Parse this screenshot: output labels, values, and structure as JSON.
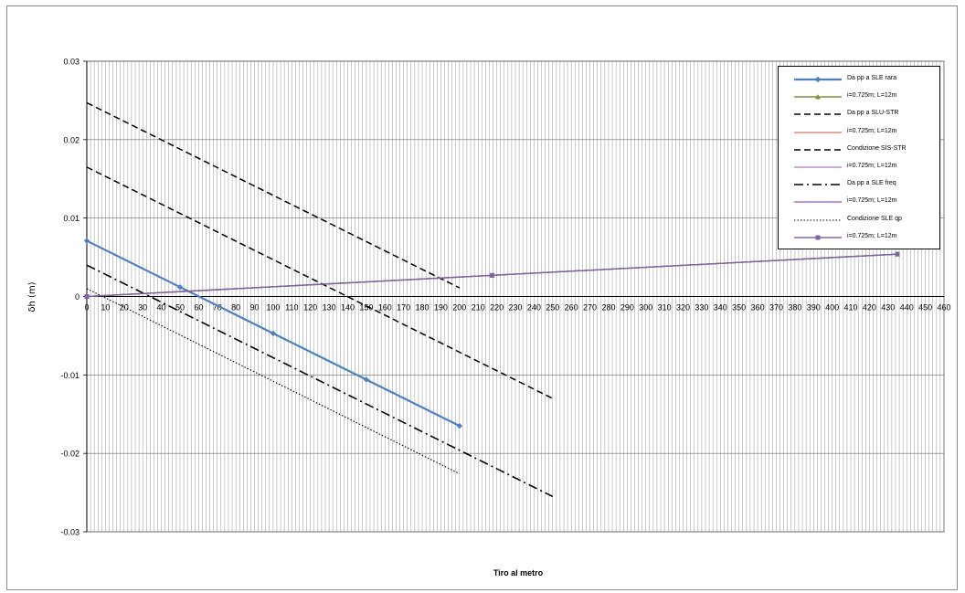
{
  "chart_data": {
    "type": "line",
    "title": "",
    "xlabel": "Tiro al metro",
    "ylabel": "δh (m)",
    "xlim": [
      0,
      460
    ],
    "ylim": [
      -0.03,
      0.03
    ],
    "x_ticks": [
      0,
      10,
      20,
      30,
      40,
      50,
      60,
      70,
      80,
      90,
      100,
      110,
      120,
      130,
      140,
      150,
      160,
      170,
      180,
      190,
      200,
      210,
      220,
      230,
      240,
      250,
      260,
      270,
      280,
      290,
      300,
      310,
      320,
      330,
      340,
      350,
      360,
      370,
      380,
      390,
      400,
      410,
      420,
      430,
      440,
      450,
      460
    ],
    "y_ticks": [
      0.03,
      0.02,
      0.01,
      0,
      -0.01,
      -0.02,
      -0.03
    ],
    "y_tick_labels": [
      "0.03",
      "0.02",
      "0.01",
      "0",
      "-0.01",
      "-0.02",
      "-0.03"
    ],
    "grid": {
      "vertical_minor_step": 2,
      "horizontal_step": 0.01
    },
    "legend_position": "top-right",
    "series": [
      {
        "name": "Da pp a SLE rara",
        "color": "#4f81bd",
        "style": "solid",
        "marker": "diamond",
        "width": 2.2,
        "x": [
          0,
          50,
          100,
          150,
          200
        ],
        "y": [
          0.0071,
          0.0012,
          -0.0047,
          -0.0106,
          -0.0165
        ]
      },
      {
        "name": "i=0.725m; L=12m",
        "color": "#77933c",
        "style": "solid",
        "marker": "triangle",
        "width": 1.4,
        "x": [
          0,
          217.5,
          435
        ],
        "y": [
          0.0,
          0.0027,
          0.0054
        ]
      },
      {
        "name": "Da pp a SLU-STR",
        "color": "#000000",
        "style": "dash",
        "marker": "none",
        "width": 1.5,
        "x": [
          0,
          250
        ],
        "y": [
          0.0165,
          -0.013
        ]
      },
      {
        "name": "i=0.725m; L=12m",
        "color": "#c0504d",
        "style": "solid",
        "marker": "none",
        "width": 1.1,
        "x": [
          0,
          435
        ],
        "y": [
          0.0,
          0.0054
        ]
      },
      {
        "name": "Condizione SIS-STR",
        "color": "#000000",
        "style": "dash",
        "marker": "none",
        "width": 1.5,
        "x": [
          0,
          200
        ],
        "y": [
          0.0247,
          0.0011
        ]
      },
      {
        "name": "i=0.725m; L=12m",
        "color": "#9b59b6",
        "style": "solid",
        "marker": "none",
        "width": 1.1,
        "x": [
          0,
          435
        ],
        "y": [
          0.0,
          0.0054
        ]
      },
      {
        "name": "Da pp a SLE freq",
        "color": "#000000",
        "style": "dashdot",
        "marker": "none",
        "width": 1.6,
        "x": [
          0,
          250
        ],
        "y": [
          0.004,
          -0.0255
        ]
      },
      {
        "name": "i=0.725m; L=12m",
        "color": "#7030a0",
        "style": "solid",
        "marker": "none",
        "width": 1.1,
        "x": [
          0,
          435
        ],
        "y": [
          0.0,
          0.0054
        ]
      },
      {
        "name": "Condizione SLE qp",
        "color": "#000000",
        "style": "dot",
        "marker": "none",
        "width": 1.1,
        "x": [
          0,
          200
        ],
        "y": [
          0.001,
          -0.0226
        ]
      },
      {
        "name": "i=0.725m; L=12m",
        "color": "#8064a2",
        "style": "solid",
        "marker": "square",
        "width": 1.4,
        "x": [
          0,
          217.5,
          435
        ],
        "y": [
          0.0,
          0.0027,
          0.0054
        ]
      }
    ]
  }
}
